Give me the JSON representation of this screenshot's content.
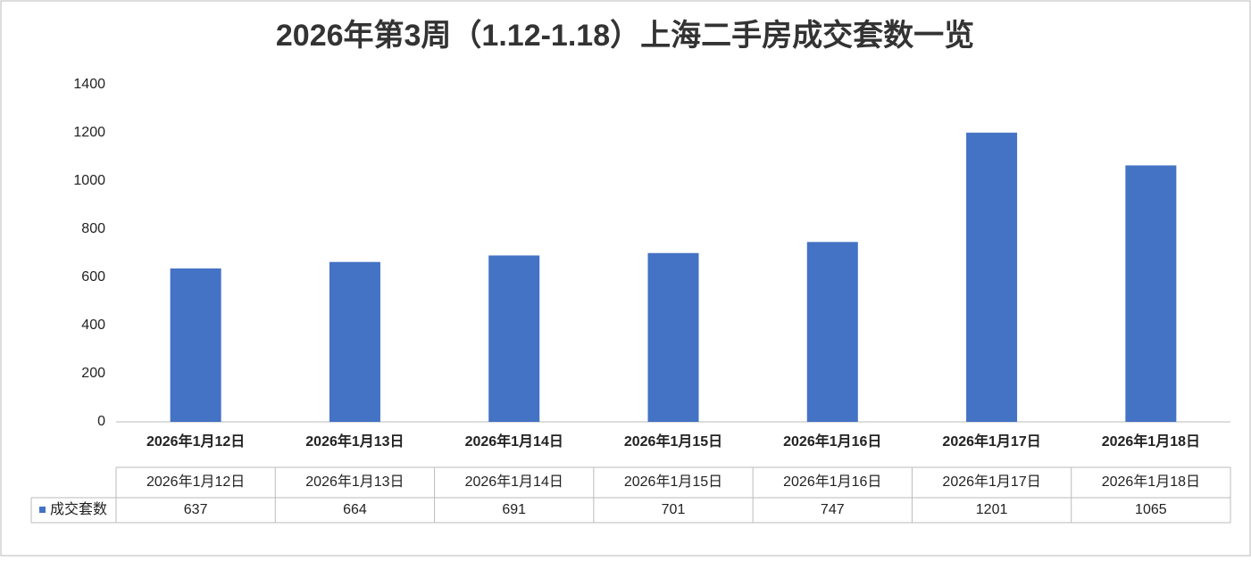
{
  "chart_data": {
    "type": "bar",
    "title": "2026年第3周（1.12-1.18）上海二手房成交套数一览",
    "categories": [
      "2026年1月12日",
      "2026年1月13日",
      "2026年1月14日",
      "2026年1月15日",
      "2026年1月16日",
      "2026年1月17日",
      "2026年1月18日"
    ],
    "series": [
      {
        "name": "成交套数",
        "color": "#4472c4",
        "values": [
          637,
          664,
          691,
          701,
          747,
          1201,
          1065
        ]
      }
    ],
    "ylim": [
      0,
      1400
    ],
    "yticks": [
      0,
      200,
      400,
      600,
      800,
      1000,
      1200,
      1400
    ],
    "data_table": true
  }
}
